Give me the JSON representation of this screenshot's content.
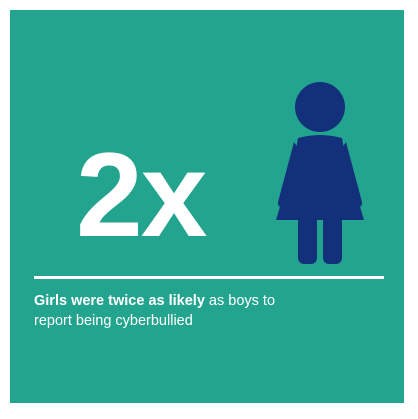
{
  "infographic": {
    "stat": "2x",
    "caption_emphasis": "Girls were twice as likely",
    "caption_rest_line1": " as boys to",
    "caption_rest_line2": "report being cyberbullied",
    "icon": "girl-figure-icon",
    "colors": {
      "background": "#23a48e",
      "figure": "#13307a",
      "text": "#ffffff"
    }
  }
}
